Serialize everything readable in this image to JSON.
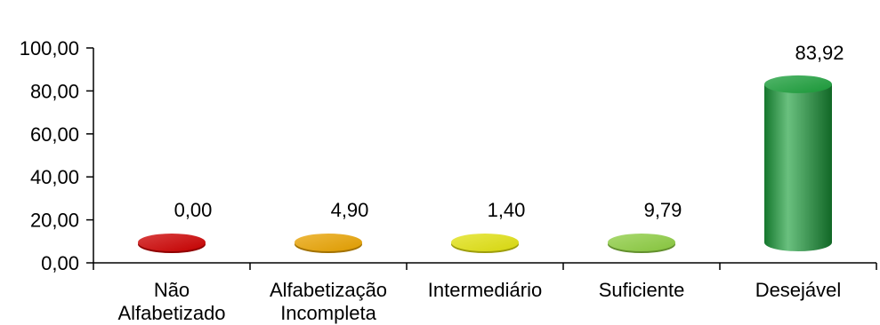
{
  "chart_data": {
    "type": "bar",
    "style": "3d-cylinder",
    "categories": [
      [
        "Não",
        "Alfabetizado"
      ],
      [
        "Alfabetização",
        "Incompleta"
      ],
      [
        "Intermediário"
      ],
      [
        "Suficiente"
      ],
      [
        "Desejável"
      ]
    ],
    "values": [
      0.0,
      4.9,
      1.4,
      9.79,
      83.92
    ],
    "data_labels": [
      "0,00",
      "4,90",
      "1,40",
      "9,79",
      "83,92"
    ],
    "colors": [
      "#cc0000",
      "#e8a200",
      "#e0e010",
      "#8ccc40",
      "#1a9e3a"
    ],
    "y_ticks": [
      "0,00",
      "20,00",
      "40,00",
      "60,00",
      "80,00",
      "100,00"
    ],
    "ylim": [
      0,
      100
    ],
    "grid": false,
    "legend": "none"
  }
}
